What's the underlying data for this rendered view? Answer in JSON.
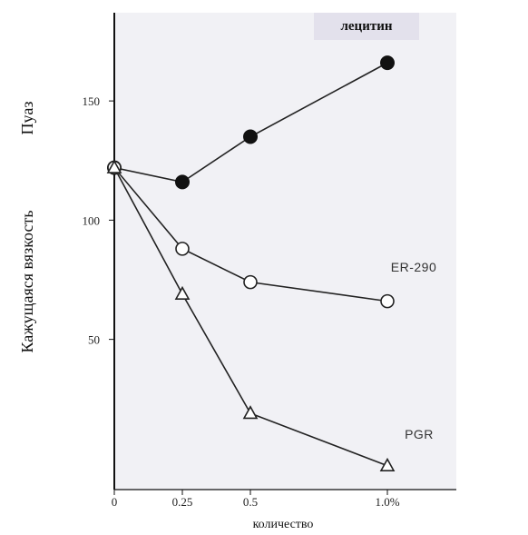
{
  "chart_data": {
    "type": "line",
    "x": [
      0,
      0.25,
      0.5,
      1.0
    ],
    "x_tick_labels": [
      "0",
      "0.25",
      "0.5",
      "1.0%"
    ],
    "y_tick_values": [
      50,
      100,
      150
    ],
    "y_tick_labels": [
      "50",
      "100",
      "150"
    ],
    "ylim": [
      -13,
      187
    ],
    "xlabel": "количество",
    "ylabel": "Кажущаяся вязкость",
    "yunit": "Пуаз",
    "background_color": "#f1f1f5",
    "series": [
      {
        "name": "лецитин",
        "marker": "filled-circle",
        "values": [
          122,
          116,
          135,
          166
        ]
      },
      {
        "name": "ER-290",
        "marker": "open-circle",
        "values": [
          122,
          88,
          74,
          66
        ]
      },
      {
        "name": "PGR",
        "marker": "open-triangle",
        "values": [
          122,
          69,
          19,
          -3
        ]
      }
    ]
  }
}
